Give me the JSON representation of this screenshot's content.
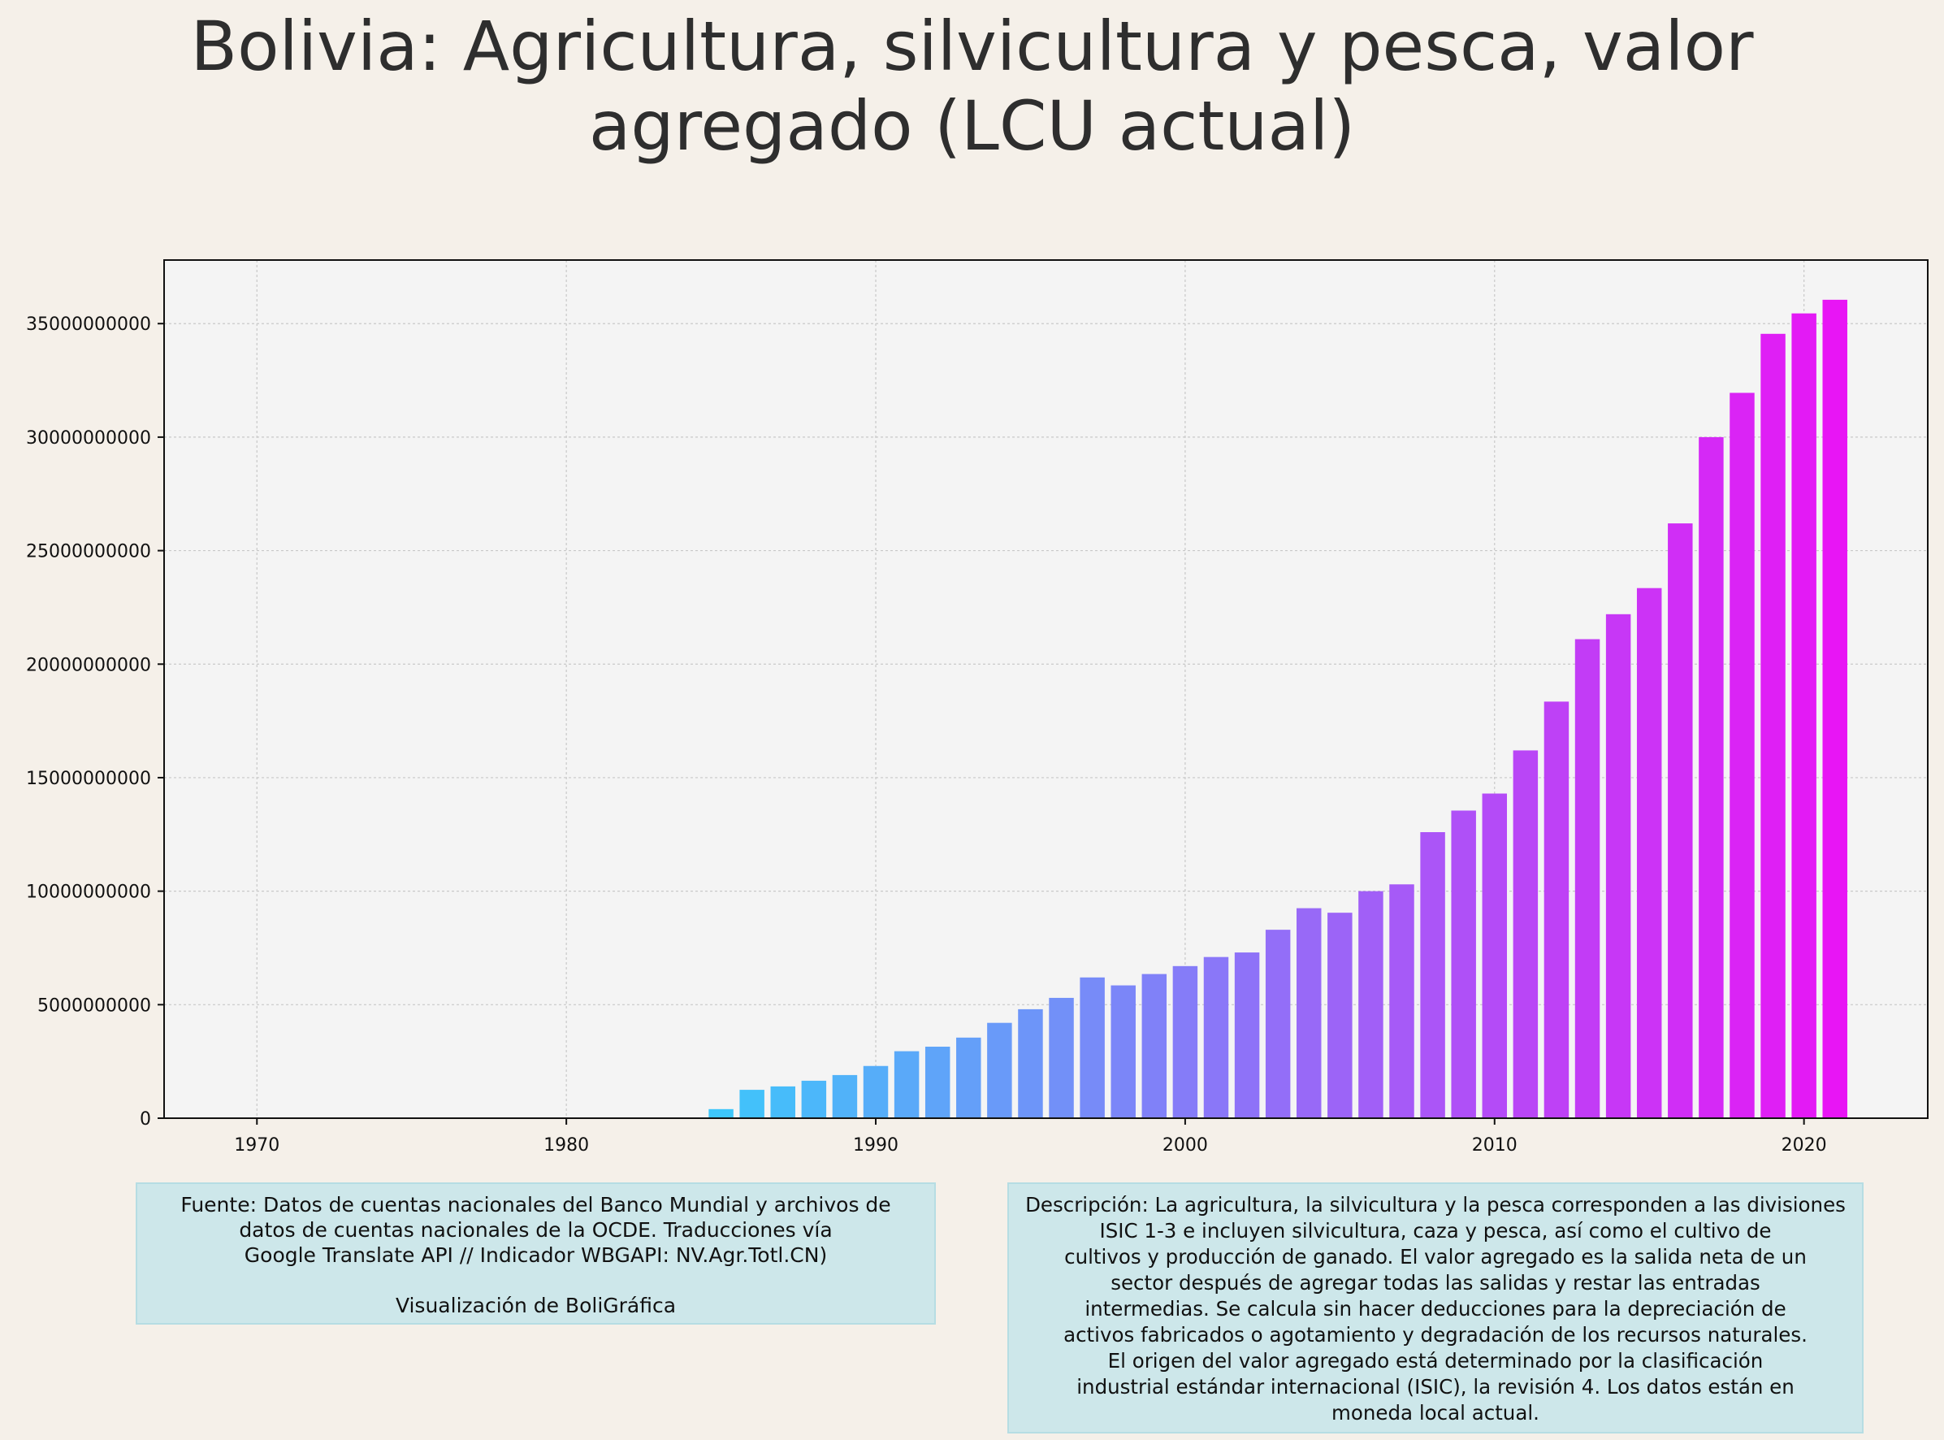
{
  "title_lines": [
    "Bolivia:  Agricultura, silvicultura y pesca, valor",
    "agregado (LCU actual)"
  ],
  "source_lines": [
    "Fuente: Datos de cuentas nacionales del Banco Mundial y archivos de",
    "datos de cuentas nacionales de la OCDE. Traducciones vía",
    "Google Translate API // Indicador WBGAPI: NV.Agr.Totl.CN)",
    "Visualización de BoliGráfica"
  ],
  "description_lines": [
    "Descripción: La agricultura, la silvicultura y la pesca corresponden a las divisiones",
    "ISIC 1-3 e incluyen silvicultura, caza y pesca, así como el cultivo de",
    "cultivos y producción de ganado. El valor agregado es la salida neta de un",
    "sector después de agregar todas las salidas y restar las entradas",
    "intermedias. Se calcula sin hacer deducciones para la depreciación de",
    "activos fabricados o agotamiento y degradación de los recursos naturales.",
    "El origen del valor agregado está determinado por la clasificación",
    "industrial estándar internacional (ISIC), la revisión 4. Los datos están en",
    "moneda local actual."
  ],
  "colors": {
    "start": "#3ec6fa",
    "end": "#e815f5",
    "plot_bg": "#f4f4f4",
    "page_bg": "#f5f0e9"
  },
  "chart_data": {
    "type": "bar",
    "x": [
      1985,
      1986,
      1987,
      1988,
      1989,
      1990,
      1991,
      1992,
      1993,
      1994,
      1995,
      1996,
      1997,
      1998,
      1999,
      2000,
      2001,
      2002,
      2003,
      2004,
      2005,
      2006,
      2007,
      2008,
      2009,
      2010,
      2011,
      2012,
      2013,
      2014,
      2015,
      2016,
      2017,
      2018,
      2019,
      2020,
      2021
    ],
    "values": [
      400000000,
      1250000000,
      1400000000,
      1650000000,
      1900000000,
      2300000000,
      2950000000,
      3150000000,
      3550000000,
      4200000000,
      4800000000,
      5300000000,
      6200000000,
      5850000000,
      6350000000,
      6700000000,
      7100000000,
      7300000000,
      8300000000,
      9250000000,
      9050000000,
      10000000000,
      10300000000,
      12600000000,
      13550000000,
      14300000000,
      16200000000,
      18350000000,
      21100000000,
      22200000000,
      23350000000,
      26200000000,
      30000000000,
      31950000000,
      34550000000,
      35450000000,
      36050000000
    ],
    "xlim": [
      1967,
      2024
    ],
    "ylim": [
      0,
      37800000000
    ],
    "xticks": [
      1970,
      1980,
      1990,
      2000,
      2010,
      2020
    ],
    "yticks": [
      0,
      5000000000,
      10000000000,
      15000000000,
      20000000000,
      25000000000,
      30000000000,
      35000000000
    ],
    "xtick_labels": [
      "1970",
      "1980",
      "1990",
      "2000",
      "2010",
      "2020"
    ],
    "ytick_labels": [
      "0",
      "5000000000",
      "10000000000",
      "15000000000",
      "20000000000",
      "25000000000",
      "30000000000",
      "35000000000"
    ],
    "grid": true,
    "legend": "none",
    "xlabel": "",
    "ylabel": ""
  }
}
